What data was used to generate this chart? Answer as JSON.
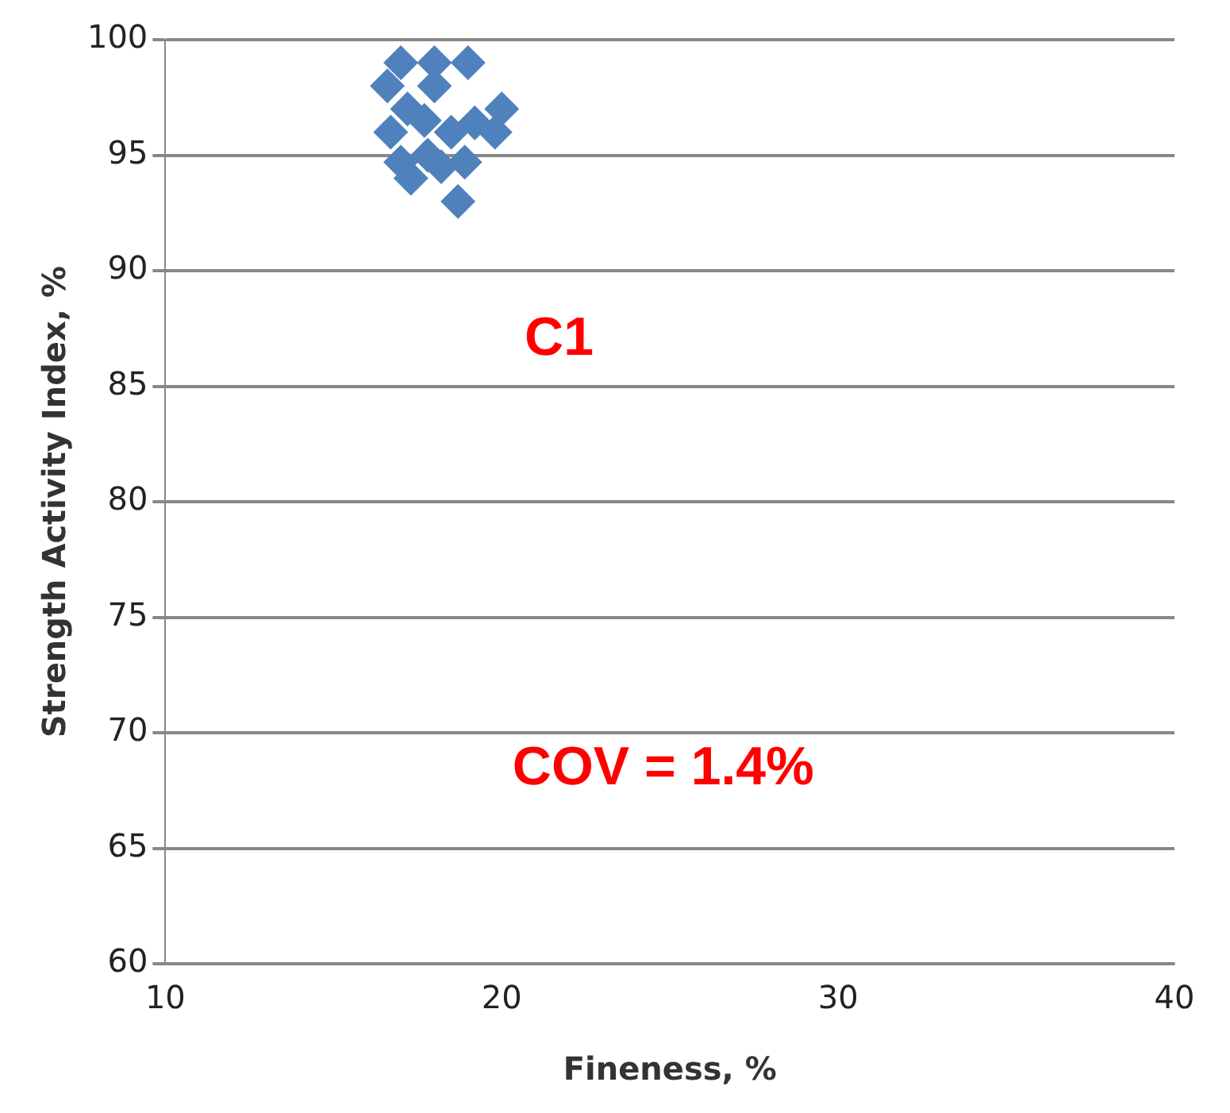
{
  "chart_data": {
    "type": "scatter",
    "xlabel": "Fineness, %",
    "ylabel": "Strength Activity Index, %",
    "x": [
      17,
      18,
      19,
      16.6,
      18,
      17.2,
      20,
      16.7,
      17.7,
      18.5,
      19.2,
      19.8,
      17,
      17.8,
      18.9,
      17.3,
      18.2,
      18.7
    ],
    "series": [
      {
        "color": "#4f81bd",
        "values": [
          99,
          99,
          99,
          98,
          98,
          97,
          97,
          96,
          96.5,
          96,
          96.4,
          96,
          94.7,
          95,
          94.7,
          94,
          94.5,
          93
        ]
      }
    ],
    "xlim": [
      10,
      40
    ],
    "xticks": [
      10,
      20,
      30,
      40
    ],
    "ylim": [
      60,
      100
    ],
    "yticks": [
      60,
      65,
      70,
      75,
      80,
      85,
      90,
      95,
      100
    ],
    "grid": "y",
    "marker": "diamond",
    "legend": false,
    "annotations": [
      "C1",
      "COV = 1.4%"
    ]
  }
}
